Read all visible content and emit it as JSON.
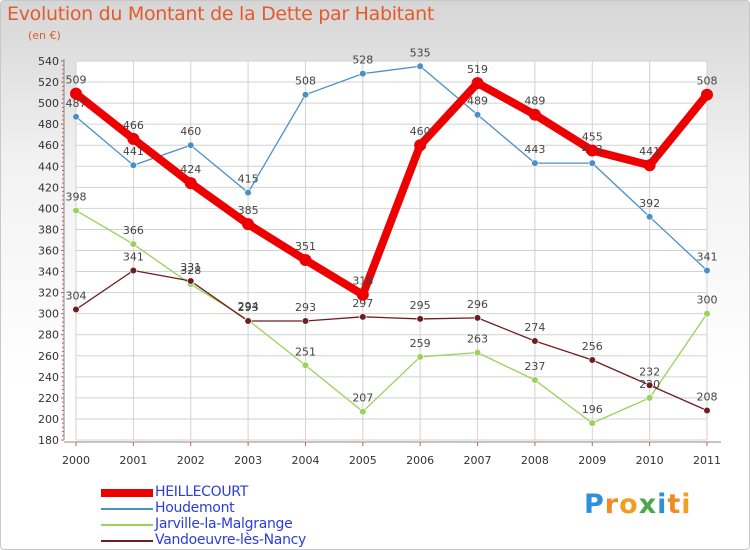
{
  "chart_data": {
    "type": "line",
    "title": "Evolution du Montant de la Dette par Habitant",
    "subtitle": "(en €)",
    "x": [
      "2000",
      "2001",
      "2002",
      "2003",
      "2004",
      "2005",
      "2006",
      "2007",
      "2008",
      "2009",
      "2010",
      "2011"
    ],
    "ylim": [
      180,
      540
    ],
    "yticks": [
      180,
      200,
      220,
      240,
      260,
      280,
      300,
      320,
      340,
      360,
      380,
      400,
      420,
      440,
      460,
      480,
      500,
      520,
      540
    ],
    "grid": true,
    "legend_position": "bottom-left",
    "series": [
      {
        "name": "HEILLECOURT",
        "color": "#ee0000",
        "values": [
          509,
          466,
          424,
          385,
          351,
          318,
          460,
          519,
          489,
          455,
          441,
          508
        ]
      },
      {
        "name": "Houdemont",
        "color": "#4a90c8",
        "values": [
          487,
          441,
          460,
          415,
          508,
          528,
          535,
          489,
          443,
          443,
          392,
          341
        ]
      },
      {
        "name": "Jarville-la-Malgrange",
        "color": "#9ad25a",
        "values": [
          398,
          366,
          328,
          294,
          251,
          207,
          259,
          263,
          237,
          196,
          220,
          300
        ]
      },
      {
        "name": "Vandoeuvre-lès-Nancy",
        "color": "#6e1e22",
        "values": [
          304,
          341,
          331,
          293,
          293,
          297,
          295,
          296,
          274,
          256,
          232,
          208
        ]
      }
    ]
  },
  "logo": {
    "text": "Proxiti"
  }
}
